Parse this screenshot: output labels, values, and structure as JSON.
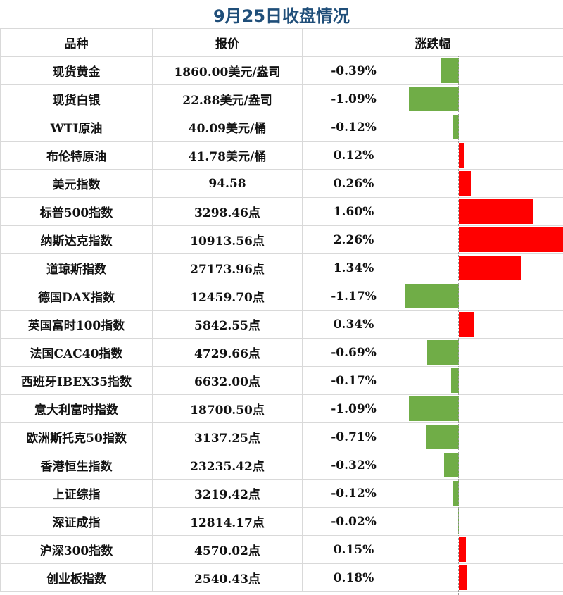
{
  "title": "9月25日收盘情况",
  "headers": {
    "name": "品种",
    "price": "报价",
    "change": "涨跌幅"
  },
  "colors": {
    "up": "#ff0000",
    "down": "#70ad47",
    "title": "#1f4e79"
  },
  "rows": [
    {
      "name": "现货黄金",
      "price": "1860.00美元/盎司",
      "change": "-0.39%",
      "value": -0.39
    },
    {
      "name": "现货白银",
      "price": "22.88美元/盎司",
      "change": "-1.09%",
      "value": -1.09
    },
    {
      "name": "WTI原油",
      "price": "40.09美元/桶",
      "change": "-0.12%",
      "value": -0.12
    },
    {
      "name": "布伦特原油",
      "price": "41.78美元/桶",
      "change": "0.12%",
      "value": 0.12
    },
    {
      "name": "美元指数",
      "price": "94.58",
      "change": "0.26%",
      "value": 0.26
    },
    {
      "name": "标普500指数",
      "price": "3298.46点",
      "change": "1.60%",
      "value": 1.6
    },
    {
      "name": "纳斯达克指数",
      "price": "10913.56点",
      "change": "2.26%",
      "value": 2.26
    },
    {
      "name": "道琼斯指数",
      "price": "27173.96点",
      "change": "1.34%",
      "value": 1.34
    },
    {
      "name": "德国DAX指数",
      "price": "12459.70点",
      "change": "-1.17%",
      "value": -1.17
    },
    {
      "name": "英国富时100指数",
      "price": "5842.55点",
      "change": "0.34%",
      "value": 0.34
    },
    {
      "name": "法国CAC40指数",
      "price": "4729.66点",
      "change": "-0.69%",
      "value": -0.69
    },
    {
      "name": "西班牙IBEX35指数",
      "price": "6632.00点",
      "change": "-0.17%",
      "value": -0.17
    },
    {
      "name": "意大利富时指数",
      "price": "18700.50点",
      "change": "-1.09%",
      "value": -1.09
    },
    {
      "name": "欧洲斯托克50指数",
      "price": "3137.25点",
      "change": "-0.71%",
      "value": -0.71
    },
    {
      "name": "香港恒生指数",
      "price": "23235.42点",
      "change": "-0.32%",
      "value": -0.32
    },
    {
      "name": "上证综指",
      "price": "3219.42点",
      "change": "-0.12%",
      "value": -0.12
    },
    {
      "name": "深证成指",
      "price": "12814.17点",
      "change": "-0.02%",
      "value": -0.02
    },
    {
      "name": "沪深300指数",
      "price": "4570.02点",
      "change": "0.15%",
      "value": 0.15
    },
    {
      "name": "创业板指数",
      "price": "2540.43点",
      "change": "0.18%",
      "value": 0.18
    }
  ]
}
